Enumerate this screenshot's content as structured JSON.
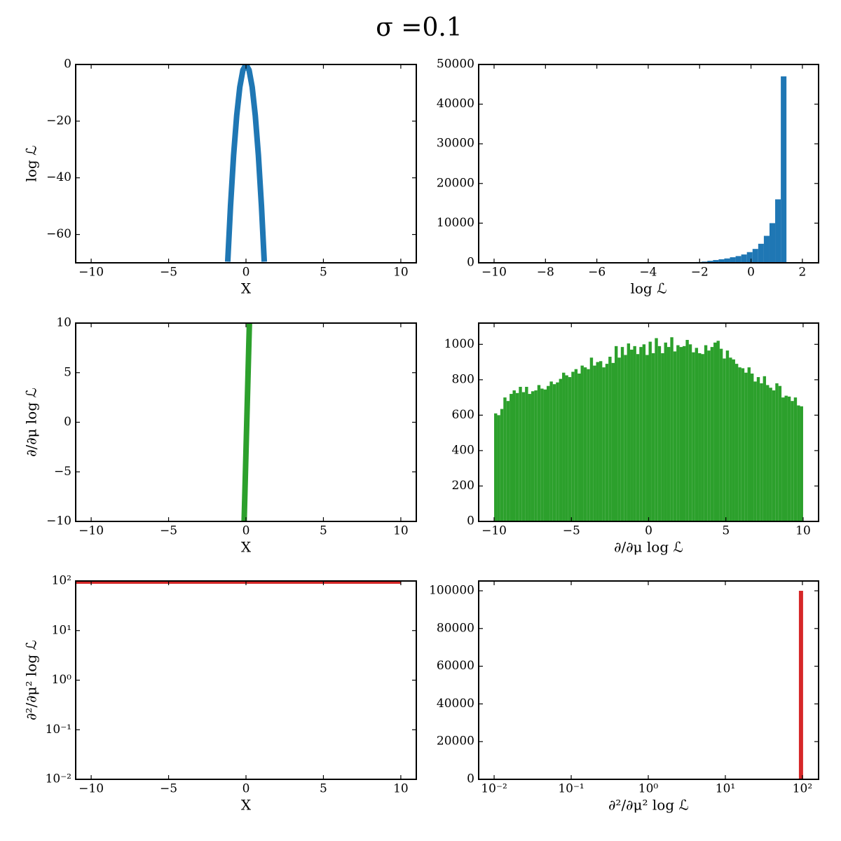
{
  "title": "σ =0.1",
  "chart_data": [
    {
      "type": "line",
      "xlabel": "X",
      "ylabel": "log ℒ",
      "color": "#1f77b4",
      "x": [
        -1.18,
        -1,
        -0.8,
        -0.6,
        -0.4,
        -0.2,
        0,
        0.2,
        0.4,
        0.6,
        0.8,
        1,
        1.18
      ],
      "values": [
        -69.62,
        -50,
        -32,
        -18,
        -8,
        -2,
        0,
        -2,
        -8,
        -18,
        -32,
        -50,
        -69.62
      ],
      "xlim": [
        -11,
        11
      ],
      "ylim": [
        -70,
        0
      ],
      "xticks": [
        {
          "value": -10,
          "label": "−10"
        },
        {
          "value": -5,
          "label": "−5"
        },
        0,
        5,
        10
      ],
      "yticks": [
        0,
        {
          "value": -20,
          "label": "−20"
        },
        {
          "value": -40,
          "label": "−40"
        },
        {
          "value": -60,
          "label": "−60"
        }
      ]
    },
    {
      "type": "histogram",
      "xlabel": "log ℒ",
      "color": "#1f77b4",
      "bins": [
        -2.14,
        -1.92,
        -1.7,
        -1.48,
        -1.26,
        -1.04,
        -0.82,
        -0.6,
        -0.38,
        -0.16,
        0.06,
        0.28,
        0.5,
        0.72,
        0.94,
        1.16,
        1.38
      ],
      "values": [
        200,
        300,
        500,
        700,
        900,
        1100,
        1400,
        1700,
        2100,
        2700,
        3500,
        4800,
        6800,
        10000,
        16000,
        47000
      ],
      "xlim": [
        -10.6,
        2.63
      ],
      "ylim": [
        0,
        50000
      ],
      "xticks": [
        {
          "value": -10,
          "label": "−10"
        },
        {
          "value": -8,
          "label": "−8"
        },
        {
          "value": -6,
          "label": "−6"
        },
        {
          "value": -4,
          "label": "−4"
        },
        {
          "value": -2,
          "label": "−2"
        },
        0,
        2
      ],
      "yticks": [
        0,
        10000,
        20000,
        30000,
        40000,
        50000
      ]
    },
    {
      "type": "line",
      "xlabel": "X",
      "ylabel": "∂/∂μ log ℒ",
      "color": "#2ca02c",
      "x": [
        -0.12,
        0.22
      ],
      "values": [
        -10,
        10
      ],
      "xlim": [
        -11,
        11
      ],
      "ylim": [
        -10,
        10
      ],
      "xticks": [
        {
          "value": -10,
          "label": "−10"
        },
        {
          "value": -5,
          "label": "−5"
        },
        0,
        5,
        10
      ],
      "yticks": [
        {
          "value": -10,
          "label": "−10"
        },
        {
          "value": -5,
          "label": "−5"
        },
        0,
        5,
        10
      ]
    },
    {
      "type": "histogram",
      "xlabel": "∂/∂μ log ℒ",
      "color": "#2ca02c",
      "bins": [
        -10,
        -9.8,
        -9.6,
        -9.4,
        -9.2,
        -9,
        -8.8,
        -8.6,
        -8.4,
        -8.2,
        -8,
        -7.8,
        -7.6,
        -7.4,
        -7.2,
        -7,
        -6.8,
        -6.6,
        -6.4,
        -6.2,
        -6,
        -5.8,
        -5.6,
        -5.4,
        -5.2,
        -5,
        -4.8,
        -4.6,
        -4.4,
        -4.2,
        -4,
        -3.8,
        -3.6,
        -3.4,
        -3.2,
        -3,
        -2.8,
        -2.6,
        -2.4,
        -2.2,
        -2,
        -1.8,
        -1.6,
        -1.4,
        -1.2,
        -1,
        -0.8,
        -0.6,
        -0.4,
        -0.2,
        0,
        0.2,
        0.4,
        0.6,
        0.8,
        1,
        1.2,
        1.4,
        1.6,
        1.8,
        2,
        2.2,
        2.4,
        2.6,
        2.8,
        3,
        3.2,
        3.4,
        3.6,
        3.8,
        4,
        4.2,
        4.4,
        4.6,
        4.8,
        5,
        5.2,
        5.4,
        5.6,
        5.8,
        6,
        6.2,
        6.4,
        6.6,
        6.8,
        7,
        7.2,
        7.4,
        7.6,
        7.8,
        8,
        8.2,
        8.4,
        8.6,
        8.8,
        9,
        9.2,
        9.4,
        9.6,
        9.8,
        10
      ],
      "values": [
        610,
        600,
        635,
        700,
        680,
        720,
        740,
        725,
        760,
        730,
        760,
        720,
        735,
        740,
        770,
        750,
        745,
        765,
        790,
        775,
        785,
        805,
        840,
        825,
        815,
        845,
        860,
        835,
        880,
        870,
        860,
        925,
        880,
        900,
        905,
        870,
        890,
        930,
        895,
        990,
        925,
        985,
        940,
        1005,
        970,
        990,
        945,
        985,
        1000,
        940,
        1015,
        950,
        1035,
        990,
        950,
        1010,
        985,
        1040,
        960,
        995,
        985,
        990,
        1025,
        1000,
        955,
        980,
        950,
        945,
        995,
        965,
        985,
        1010,
        1020,
        975,
        920,
        965,
        925,
        915,
        890,
        870,
        865,
        840,
        870,
        835,
        790,
        815,
        780,
        820,
        770,
        755,
        740,
        780,
        765,
        700,
        710,
        705,
        680,
        700,
        655,
        650
      ],
      "xlim": [
        -11,
        11
      ],
      "ylim": [
        0,
        1120
      ],
      "xticks": [
        {
          "value": -10,
          "label": "−10"
        },
        {
          "value": -5,
          "label": "−5"
        },
        0,
        5,
        10
      ],
      "yticks": [
        0,
        200,
        400,
        600,
        800,
        1000
      ]
    },
    {
      "type": "line",
      "xlabel": "X",
      "ylabel": "∂²/∂μ² log ℒ",
      "color": "#d62728",
      "ylog": true,
      "x": [
        -11,
        10
      ],
      "values": [
        100,
        100
      ],
      "xlim": [
        -11,
        11
      ],
      "ylim": [
        0.01,
        100
      ],
      "xticks": [
        {
          "value": -10,
          "label": "−10"
        },
        {
          "value": -5,
          "label": "−5"
        },
        0,
        5,
        10
      ],
      "yticks": [
        {
          "value": 0.01,
          "label": "10⁻²"
        },
        {
          "value": 0.1,
          "label": "10⁻¹"
        },
        {
          "value": 1,
          "label": "10⁰"
        },
        {
          "value": 10,
          "label": "10¹"
        },
        {
          "value": 100,
          "label": "10²"
        }
      ]
    },
    {
      "type": "histogram",
      "xlabel": "∂²/∂μ² log ℒ",
      "color": "#d62728",
      "xlog": true,
      "bins": [
        90,
        102
      ],
      "values": [
        100000
      ],
      "xlim": [
        0.0063,
        162
      ],
      "ylim": [
        0,
        105200
      ],
      "xticks": [
        {
          "value": 0.01,
          "label": "10⁻²"
        },
        {
          "value": 0.1,
          "label": "10⁻¹"
        },
        {
          "value": 1,
          "label": "10⁰"
        },
        {
          "value": 10,
          "label": "10¹"
        },
        {
          "value": 100,
          "label": "10²"
        }
      ],
      "yticks": [
        0,
        20000,
        40000,
        60000,
        80000,
        100000
      ]
    }
  ]
}
